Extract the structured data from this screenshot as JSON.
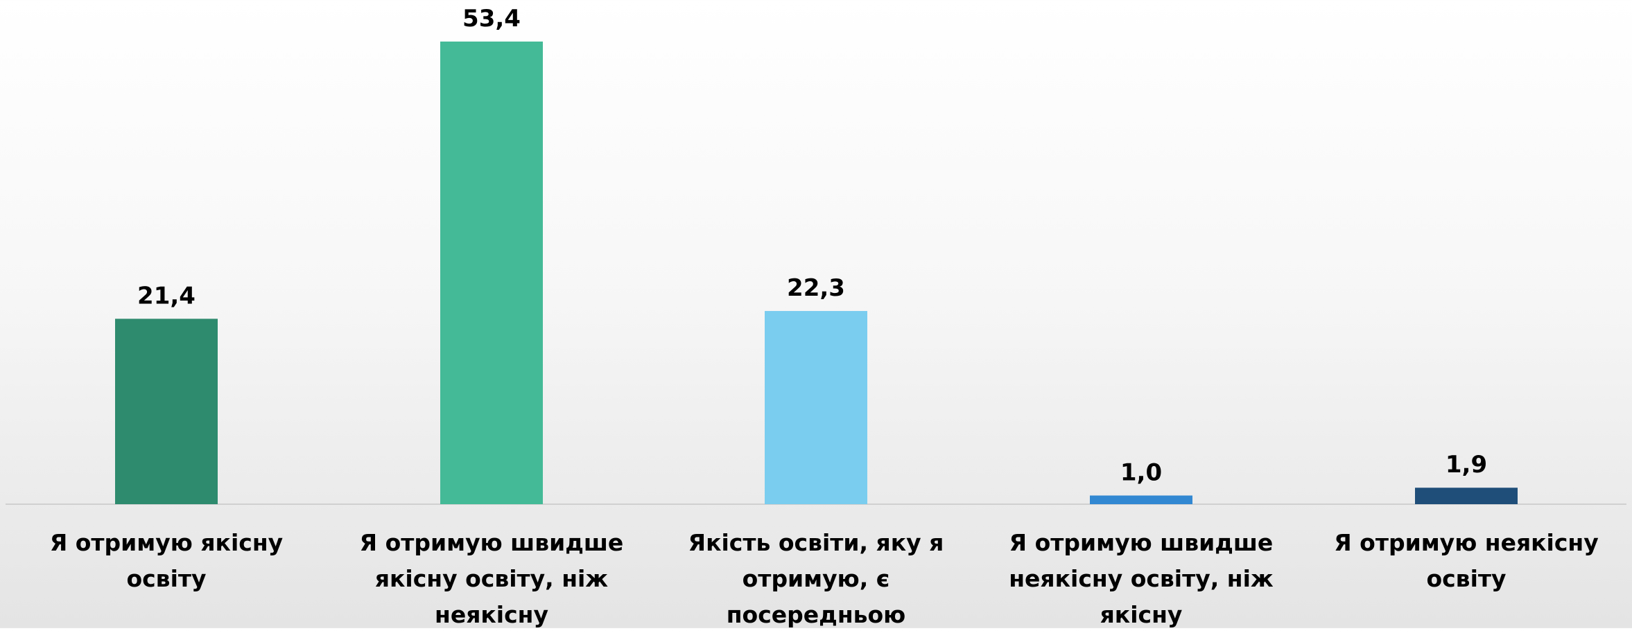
{
  "chart_data": {
    "type": "bar",
    "categories": [
      "Я отримую якісну освіту",
      "Я отримую швидше якісну освіту, ніж неякісну",
      "Якість освіти, яку я отримую, є посередньою",
      "Я отримую швидше неякісну освіту, ніж якісну",
      "Я отримую неякісну освіту"
    ],
    "values": [
      21.4,
      53.4,
      22.3,
      1.0,
      1.9
    ],
    "value_labels": [
      "21,4",
      "53,4",
      "22,3",
      "1,0",
      "1,9"
    ],
    "bar_colors": [
      "#2E8B6E",
      "#44BA97",
      "#7ACDEF",
      "#3288D2",
      "#1F4E79"
    ],
    "ylim": [
      0,
      58
    ],
    "grid": false,
    "legend": "none",
    "baseline_color": "#d0d0d0"
  }
}
